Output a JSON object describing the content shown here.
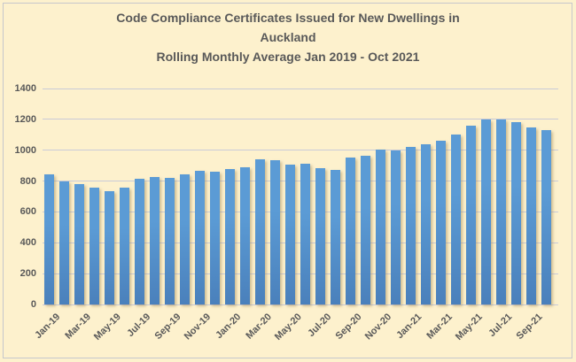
{
  "window": {
    "background_color": "#fdf1cd",
    "border_color": "#c6c7cc",
    "text_color": "#595959"
  },
  "chart_data": {
    "type": "bar",
    "title_lines": [
      "Code Compliance Certificates Issued for New Dwellings in",
      "Auckland",
      "Rolling Monthly Average Jan 2019 - Oct 2021"
    ],
    "categories": [
      "Jan-19",
      "Feb-19",
      "Mar-19",
      "Apr-19",
      "May-19",
      "Jun-19",
      "Jul-19",
      "Aug-19",
      "Sep-19",
      "Oct-19",
      "Nov-19",
      "Dec-19",
      "Jan-20",
      "Feb-20",
      "Mar-20",
      "Apr-20",
      "May-20",
      "Jun-20",
      "Jul-20",
      "Aug-20",
      "Sep-20",
      "Oct-20",
      "Nov-20",
      "Dec-20",
      "Jan-21",
      "Feb-21",
      "Mar-21",
      "Apr-21",
      "May-21",
      "Jun-21",
      "Jul-21",
      "Aug-21",
      "Sep-21",
      "Oct-21"
    ],
    "values": [
      845,
      795,
      780,
      760,
      735,
      755,
      815,
      825,
      820,
      845,
      865,
      860,
      880,
      890,
      940,
      935,
      905,
      915,
      885,
      870,
      955,
      965,
      1005,
      1000,
      1020,
      1040,
      1060,
      1100,
      1160,
      1200,
      1200,
      1180,
      1150,
      1130
    ],
    "x_tick_label_every": 2,
    "x_tick_labels_shown": [
      "Jan-19",
      "Mar-19",
      "May-19",
      "Jul-19",
      "Sep-19",
      "Nov-19",
      "Jan-20",
      "Mar-20",
      "May-20",
      "Jul-20",
      "Sep-20",
      "Nov-20",
      "Jan-21",
      "Mar-21",
      "May-21",
      "Jul-21",
      "Sep-21"
    ],
    "y_ticks": [
      0,
      200,
      400,
      600,
      800,
      1000,
      1200,
      1400
    ],
    "ylim": [
      0,
      1400
    ],
    "xlabel": "",
    "ylabel": "",
    "grid": true,
    "legend": false,
    "bar_color": "#5b9bd5",
    "bar_color_bottom": "#4a80bb",
    "gridline_color": "#c9cbd8"
  }
}
